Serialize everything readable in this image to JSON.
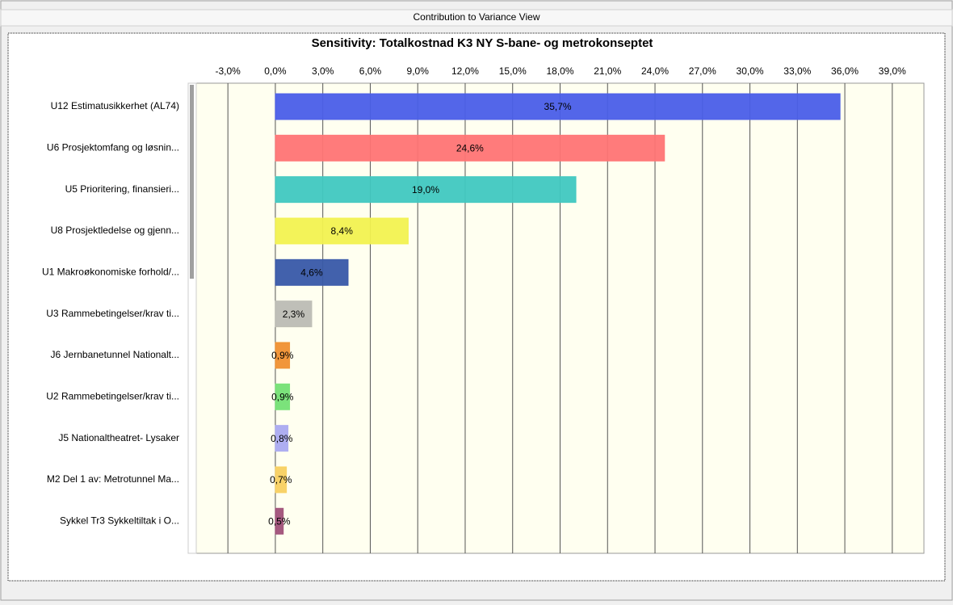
{
  "window": {
    "title": "Contribution to Variance View"
  },
  "chart_data": {
    "type": "hbar",
    "title": "Sensitivity: Totalkostnad K3 NY S-bane- og metrokonseptet",
    "categories": [
      "U12 Estimatusikkerhet (AL74)",
      "U6 Prosjektomfang og løsnin...",
      "U5 Prioritering, finansieri...",
      "U8 Prosjektledelse og gjenn...",
      "U1 Makroøkonomiske forhold/...",
      "U3 Rammebetingelser/krav ti...",
      "J6 Jernbanetunnel Nationalt...",
      "U2 Rammebetingelser/krav ti...",
      "J5 Nationaltheatret- Lysaker",
      "M2 Del 1 av: Metrotunnel Ma...",
      "Sykkel Tr3 Sykkeltiltak i O..."
    ],
    "values": [
      35.7,
      24.6,
      19.0,
      8.4,
      4.6,
      2.3,
      0.9,
      0.9,
      0.8,
      0.7,
      0.5
    ],
    "value_labels": [
      "35,7%",
      "24,6%",
      "19,0%",
      "8,4%",
      "4,6%",
      "2,3%",
      "0,9%",
      "0,9%",
      "0,8%",
      "0,7%",
      "0,5%"
    ],
    "colors": [
      "#4a5ee8",
      "#ff7474",
      "#40c8c0",
      "#f2f250",
      "#3858a8",
      "#bcbcb4",
      "#f09030",
      "#74e074",
      "#aaaaf0",
      "#f8d060",
      "#a05078"
    ],
    "xlim": [
      -5,
      41
    ],
    "xticks": [
      {
        "value": -3,
        "label": "-3,0%"
      },
      {
        "value": 0,
        "label": "0,0%"
      },
      {
        "value": 3,
        "label": "3,0%"
      },
      {
        "value": 6,
        "label": "6,0%"
      },
      {
        "value": 9,
        "label": "9,0%"
      },
      {
        "value": 12,
        "label": "12,0%"
      },
      {
        "value": 15,
        "label": "15,0%"
      },
      {
        "value": 18,
        "label": "18,0%"
      },
      {
        "value": 21,
        "label": "21,0%"
      },
      {
        "value": 24,
        "label": "24,0%"
      },
      {
        "value": 27,
        "label": "27,0%"
      },
      {
        "value": 30,
        "label": "30,0%"
      },
      {
        "value": 33,
        "label": "33,0%"
      },
      {
        "value": 36,
        "label": "36,0%"
      },
      {
        "value": 39,
        "label": "39,0%"
      }
    ],
    "grid": true
  }
}
